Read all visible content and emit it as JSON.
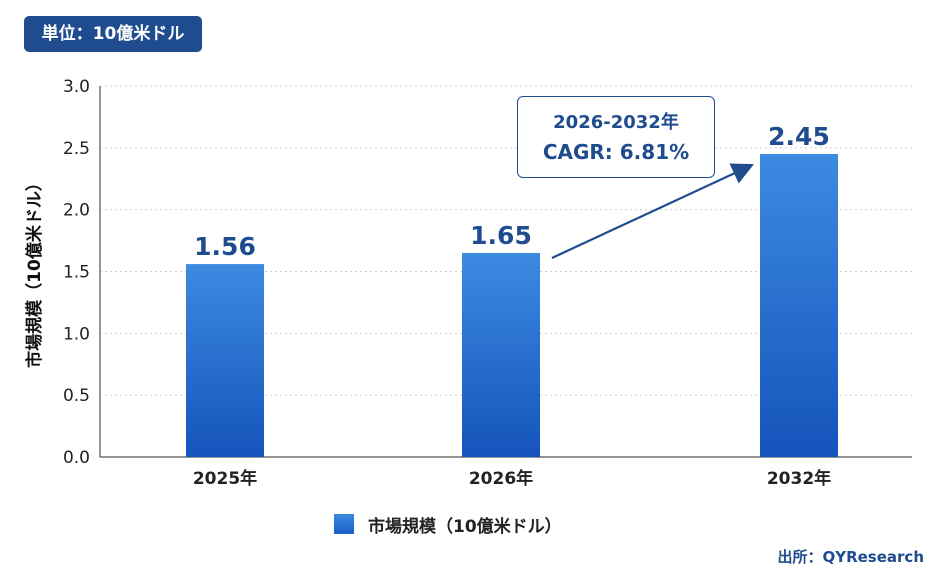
{
  "unit_badge": "単位：10億米ドル",
  "chart_data": {
    "type": "bar",
    "categories": [
      "2025年",
      "2026年",
      "2032年"
    ],
    "series": [
      {
        "name": "市場規模（10億米ドル）",
        "values": [
          1.56,
          1.65,
          2.45
        ]
      }
    ],
    "data_labels": [
      "1.56",
      "1.65",
      "2.45"
    ],
    "ylabel": "市場規模（10億米ドル）",
    "xlabel": "",
    "ylim": [
      0,
      3.0
    ],
    "yticks": [
      "0.0",
      "0.5",
      "1.0",
      "1.5",
      "2.0",
      "2.5",
      "3.0"
    ],
    "grid": true,
    "legend_position": "bottom-center",
    "annotation": {
      "line1": "2026-2032年",
      "line2": "CAGR: 6.81%",
      "from_category": "2026年",
      "to_category": "2032年"
    },
    "colors": {
      "bar": "#2a73d9",
      "accent": "#1e4c8f"
    }
  },
  "source": "出所：QYResearch"
}
